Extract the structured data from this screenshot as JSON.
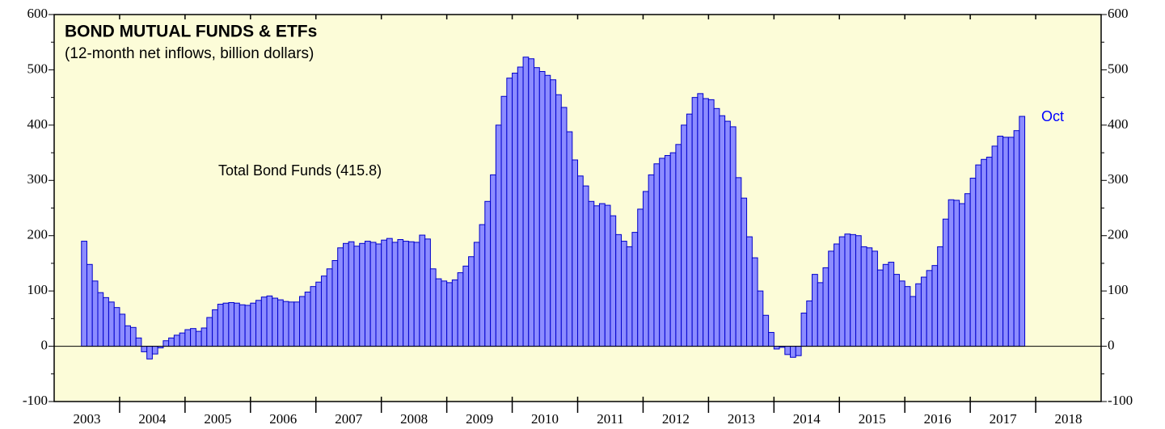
{
  "chart_data": {
    "type": "bar",
    "title": "BOND MUTUAL FUNDS & ETFs",
    "subtitle": "(12-month net inflows, billion dollars)",
    "annotations": [
      "Total Bond Funds (415.8)",
      "Oct"
    ],
    "color": "#8c8cff",
    "edge_color": "#0000cc",
    "background": "#fcfcd8",
    "ylim": [
      -100,
      600
    ],
    "yticks": [
      -100,
      0,
      100,
      200,
      300,
      400,
      500,
      600
    ],
    "yminor_ticks": [
      -50,
      50,
      150,
      250,
      350,
      450,
      550
    ],
    "xlim": [
      2003,
      2019
    ],
    "xticks": [
      {
        "value": 2003.5,
        "label": "2003"
      },
      {
        "value": 2004.5,
        "label": "2004"
      },
      {
        "value": 2005.5,
        "label": "2005"
      },
      {
        "value": 2006.5,
        "label": "2006"
      },
      {
        "value": 2007.5,
        "label": "2007"
      },
      {
        "value": 2008.5,
        "label": "2008"
      },
      {
        "value": 2009.5,
        "label": "2009"
      },
      {
        "value": 2010.5,
        "label": "2010"
      },
      {
        "value": 2011.5,
        "label": "2011"
      },
      {
        "value": 2012.5,
        "label": "2012"
      },
      {
        "value": 2013.5,
        "label": "2013"
      },
      {
        "value": 2014.5,
        "label": "2014"
      },
      {
        "value": 2015.5,
        "label": "2015"
      },
      {
        "value": 2016.5,
        "label": "2016"
      },
      {
        "value": 2017.5,
        "label": "2017"
      },
      {
        "value": 2018.5,
        "label": "2018"
      }
    ],
    "xminor_ticks": [
      2004,
      2005,
      2006,
      2007,
      2008,
      2009,
      2010,
      2011,
      2012,
      2013,
      2014,
      2015,
      2016,
      2017,
      2018
    ],
    "x": [
      2003.417,
      2003.5,
      2003.583,
      2003.667,
      2003.75,
      2003.833,
      2003.917,
      2004,
      2004.083,
      2004.167,
      2004.25,
      2004.333,
      2004.417,
      2004.5,
      2004.583,
      2004.667,
      2004.75,
      2004.833,
      2004.917,
      2005,
      2005.083,
      2005.167,
      2005.25,
      2005.333,
      2005.417,
      2005.5,
      2005.583,
      2005.667,
      2005.75,
      2005.833,
      2005.917,
      2006,
      2006.083,
      2006.167,
      2006.25,
      2006.333,
      2006.417,
      2006.5,
      2006.583,
      2006.667,
      2006.75,
      2006.833,
      2006.917,
      2007,
      2007.083,
      2007.167,
      2007.25,
      2007.333,
      2007.417,
      2007.5,
      2007.583,
      2007.667,
      2007.75,
      2007.833,
      2007.917,
      2008,
      2008.083,
      2008.167,
      2008.25,
      2008.333,
      2008.417,
      2008.5,
      2008.583,
      2008.667,
      2008.75,
      2008.833,
      2008.917,
      2009,
      2009.083,
      2009.167,
      2009.25,
      2009.333,
      2009.417,
      2009.5,
      2009.583,
      2009.667,
      2009.75,
      2009.833,
      2009.917,
      2010,
      2010.083,
      2010.167,
      2010.25,
      2010.333,
      2010.417,
      2010.5,
      2010.583,
      2010.667,
      2010.75,
      2010.833,
      2010.917,
      2011,
      2011.083,
      2011.167,
      2011.25,
      2011.333,
      2011.417,
      2011.5,
      2011.583,
      2011.667,
      2011.75,
      2011.833,
      2011.917,
      2012,
      2012.083,
      2012.167,
      2012.25,
      2012.333,
      2012.417,
      2012.5,
      2012.583,
      2012.667,
      2012.75,
      2012.833,
      2012.917,
      2013,
      2013.083,
      2013.167,
      2013.25,
      2013.333,
      2013.417,
      2013.5,
      2013.583,
      2013.667,
      2013.75,
      2013.833,
      2013.917,
      2014,
      2014.083,
      2014.167,
      2014.25,
      2014.333,
      2014.417,
      2014.5,
      2014.583,
      2014.667,
      2014.75,
      2014.833,
      2014.917,
      2015,
      2015.083,
      2015.167,
      2015.25,
      2015.333,
      2015.417,
      2015.5,
      2015.583,
      2015.667,
      2015.75,
      2015.833,
      2015.917,
      2016,
      2016.083,
      2016.167,
      2016.25,
      2016.333,
      2016.417,
      2016.5,
      2016.583,
      2016.667,
      2016.75,
      2016.833,
      2016.917,
      2017,
      2017.083,
      2017.167,
      2017.25,
      2017.333,
      2017.417,
      2017.5,
      2017.583,
      2017.667,
      2017.75
    ],
    "values": [
      190,
      148,
      118,
      97,
      88,
      80,
      70,
      58,
      37,
      34,
      15,
      -10,
      -23,
      -14,
      -3,
      10,
      15,
      20,
      24,
      30,
      32,
      27,
      33,
      52,
      66,
      76,
      78,
      79,
      78,
      75,
      74,
      78,
      83,
      89,
      91,
      87,
      84,
      81,
      80,
      80,
      90,
      98,
      108,
      116,
      127,
      140,
      155,
      178,
      186,
      189,
      181,
      186,
      190,
      188,
      185,
      192,
      195,
      188,
      193,
      190,
      189,
      188,
      201,
      194,
      140,
      122,
      118,
      115,
      120,
      133,
      145,
      162,
      188,
      220,
      262,
      310,
      400,
      452,
      485,
      494,
      505,
      523,
      520,
      504,
      497,
      490,
      482,
      455,
      432,
      388,
      337,
      308,
      290,
      262,
      254,
      258,
      255,
      236,
      202,
      190,
      180,
      206,
      248,
      280,
      310,
      330,
      340,
      345,
      350,
      365,
      400,
      420,
      450,
      457,
      448,
      446,
      430,
      417,
      407,
      397,
      305,
      268,
      198,
      160,
      100,
      56,
      25,
      -5,
      -2,
      -15,
      -20,
      -17,
      60,
      82,
      130,
      115,
      142,
      172,
      185,
      198,
      203,
      202,
      200,
      180,
      178,
      172,
      138,
      148,
      152,
      130,
      118,
      108,
      90,
      113,
      125,
      137,
      146,
      180,
      230,
      265,
      264,
      258,
      276,
      304,
      328,
      338,
      342,
      362,
      380,
      378,
      378,
      390,
      415.8
    ]
  }
}
